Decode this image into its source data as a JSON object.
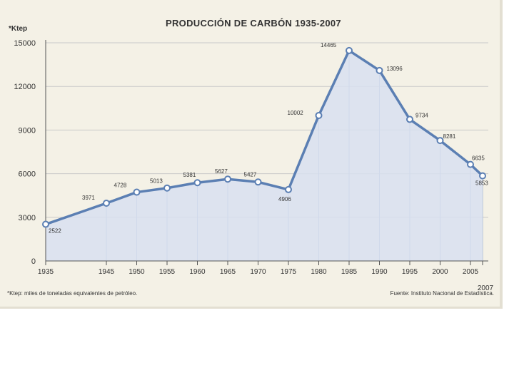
{
  "chart_data": {
    "type": "area",
    "title": "PRODUCCIÓN DE CARBÓN 1935-2007",
    "ylabel": "*Ktep",
    "ylim": [
      0,
      15000
    ],
    "yticks": [
      0,
      3000,
      6000,
      9000,
      12000,
      15000
    ],
    "x_tick_labels": [
      "1935",
      "1945",
      "1950",
      "1955",
      "1960",
      "1965",
      "1970",
      "1975",
      "1980",
      "1985",
      "1990",
      "1995",
      "2000",
      "2005",
      "2007"
    ],
    "x": [
      1935,
      1945,
      1950,
      1955,
      1960,
      1965,
      1970,
      1975,
      1980,
      1985,
      1990,
      1995,
      2000,
      2005,
      2007
    ],
    "series": [
      {
        "values": [
          2522,
          3971,
          4728,
          5013,
          5381,
          5627,
          5427,
          4906,
          10002,
          14465,
          13096,
          9734,
          8281,
          6635,
          5853
        ],
        "labels": [
          "2522",
          "3971",
          "4728",
          "5013",
          "5381",
          "5627",
          "5427",
          "4906",
          "10002",
          "14465",
          "13096",
          "9734",
          "8281",
          "6635",
          "5853"
        ]
      }
    ],
    "grid": "horizontal",
    "colors": {
      "line": "#5b7fb3",
      "fill": "#d8e0f0",
      "marker": "#5b7fb3",
      "background": "#f4f1e6",
      "grid": "#c9c9c9"
    },
    "footnote": "*Ktep: miles de toneladas equivalentes de petróleo.",
    "source": "Fuente: Instituto Nacional de Estadística."
  }
}
